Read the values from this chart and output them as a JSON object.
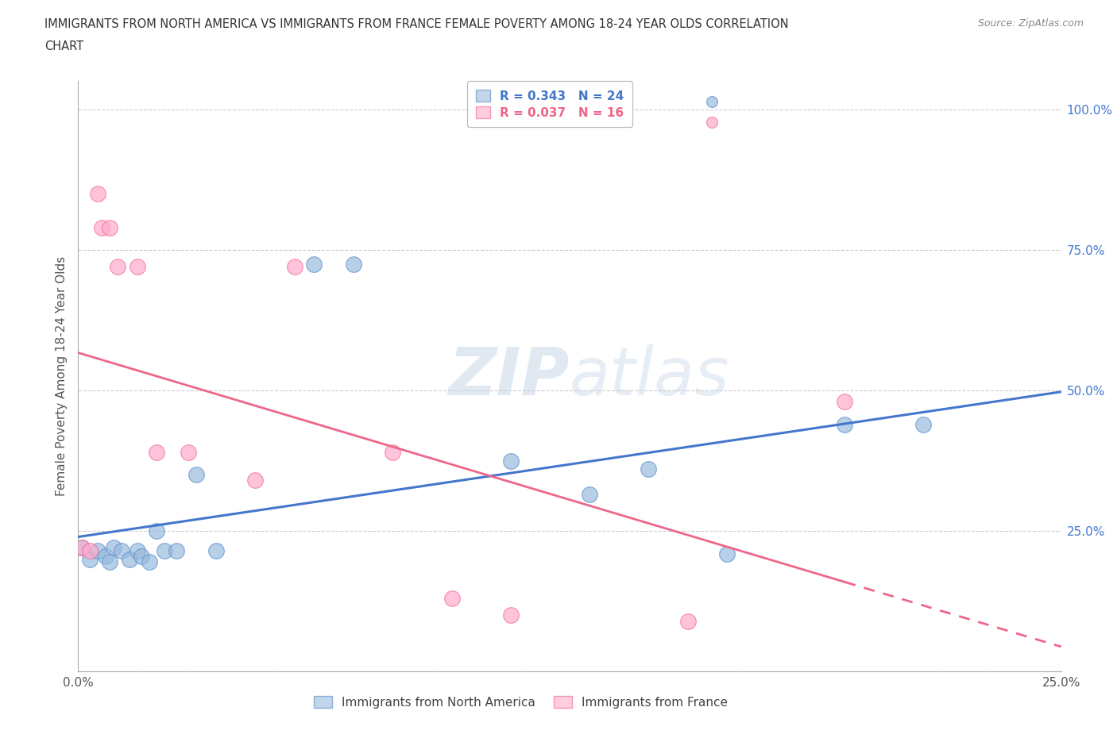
{
  "title_line1": "IMMIGRANTS FROM NORTH AMERICA VS IMMIGRANTS FROM FRANCE FEMALE POVERTY AMONG 18-24 YEAR OLDS CORRELATION",
  "title_line2": "CHART",
  "source": "Source: ZipAtlas.com",
  "ylabel": "Female Poverty Among 18-24 Year Olds",
  "xlim": [
    0.0,
    0.25
  ],
  "ylim": [
    0.0,
    1.05
  ],
  "watermark": "ZIPatlas",
  "blue_color": "#99BBDD",
  "blue_edge_color": "#5588CC",
  "pink_color": "#FFAACC",
  "pink_edge_color": "#EE6688",
  "blue_line_color": "#4477CC",
  "pink_line_color": "#EE6688",
  "R_blue": 0.343,
  "N_blue": 24,
  "R_pink": 0.037,
  "N_pink": 16,
  "blue_x": [
    0.001,
    0.003,
    0.005,
    0.007,
    0.008,
    0.009,
    0.011,
    0.013,
    0.015,
    0.016,
    0.018,
    0.02,
    0.022,
    0.025,
    0.03,
    0.035,
    0.06,
    0.07,
    0.11,
    0.13,
    0.145,
    0.165,
    0.195,
    0.215
  ],
  "blue_y": [
    0.22,
    0.2,
    0.215,
    0.205,
    0.195,
    0.22,
    0.215,
    0.2,
    0.215,
    0.205,
    0.195,
    0.25,
    0.215,
    0.215,
    0.35,
    0.215,
    0.725,
    0.725,
    0.375,
    0.315,
    0.36,
    0.21,
    0.44,
    0.44
  ],
  "pink_x": [
    0.001,
    0.003,
    0.005,
    0.006,
    0.008,
    0.01,
    0.015,
    0.02,
    0.028,
    0.045,
    0.055,
    0.08,
    0.095,
    0.11,
    0.155,
    0.195
  ],
  "pink_y": [
    0.22,
    0.215,
    0.85,
    0.79,
    0.79,
    0.72,
    0.72,
    0.39,
    0.39,
    0.34,
    0.72,
    0.39,
    0.13,
    0.1,
    0.09,
    0.48
  ],
  "grid_color": "#CCCCCC",
  "background_color": "#FFFFFF"
}
